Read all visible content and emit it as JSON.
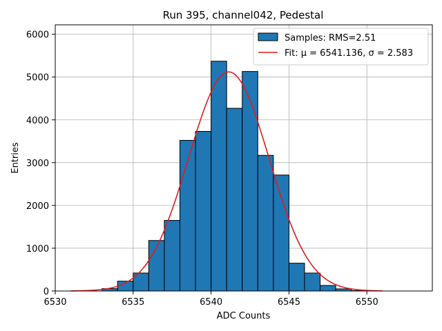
{
  "chart_data": {
    "type": "bar",
    "title": "Run 395, channel042, Pedestal",
    "xlabel": "ADC Counts",
    "ylabel": "Entries",
    "xlim": [
      6530,
      6554.2
    ],
    "ylim": [
      0,
      6220
    ],
    "grid": true,
    "xticks": [
      6530,
      6535,
      6540,
      6545,
      6550
    ],
    "yticks": [
      0,
      1000,
      2000,
      3000,
      4000,
      5000,
      6000
    ],
    "bin_width": 1,
    "bins": [
      {
        "left": 6533,
        "count": 55
      },
      {
        "left": 6534,
        "count": 230
      },
      {
        "left": 6535,
        "count": 420
      },
      {
        "left": 6536,
        "count": 1180
      },
      {
        "left": 6537,
        "count": 1650
      },
      {
        "left": 6538,
        "count": 3520
      },
      {
        "left": 6539,
        "count": 3730
      },
      {
        "left": 6540,
        "count": 5370
      },
      {
        "left": 6541,
        "count": 4270
      },
      {
        "left": 6542,
        "count": 5130
      },
      {
        "left": 6543,
        "count": 3170
      },
      {
        "left": 6544,
        "count": 2710
      },
      {
        "left": 6545,
        "count": 650
      },
      {
        "left": 6546,
        "count": 420
      },
      {
        "left": 6547,
        "count": 130
      },
      {
        "left": 6548,
        "count": 50
      },
      {
        "left": 6549,
        "count": 10
      }
    ],
    "fit": {
      "mu": 6541.136,
      "sigma": 2.583,
      "amplitude": 5120,
      "x_range": [
        6531,
        6551
      ]
    },
    "legend": {
      "position": "top-right",
      "samples_label": "Samples: RMS=2.51",
      "fit_label": "Fit: μ = 6541.136, σ = 2.583"
    },
    "colors": {
      "bar_fill": "#1f77b4",
      "bar_edge": "#000000",
      "fit_line": "#e41a1c"
    }
  }
}
